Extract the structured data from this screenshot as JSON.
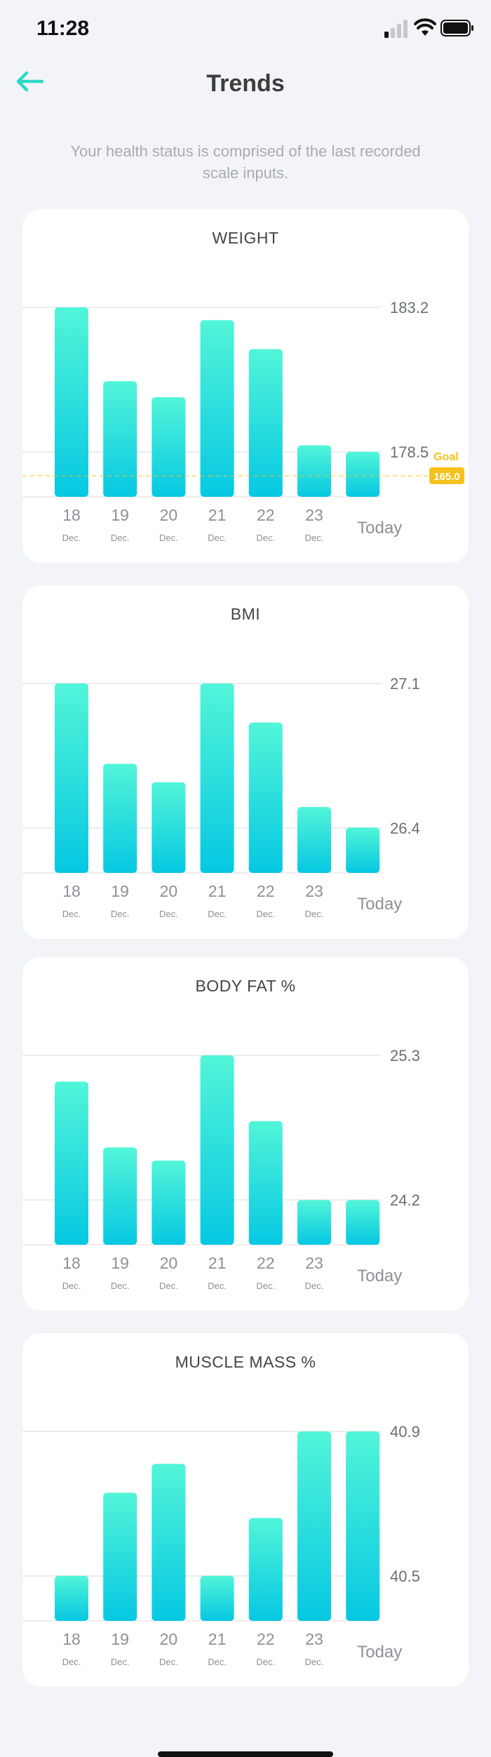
{
  "status_bar": {
    "time": "11:28"
  },
  "header": {
    "title": "Trends",
    "back_icon": "arrow-left-icon"
  },
  "subtitle": "Your health status is comprised of the last recorded scale inputs.",
  "colors": {
    "accent": "#2fd8c6",
    "bar_top": "#52f5d8",
    "bar_bottom": "#06c8e2",
    "goal": "#f5c21b"
  },
  "chart_data": [
    {
      "type": "bar",
      "title": "WEIGHT",
      "categories": [
        "18",
        "19",
        "20",
        "21",
        "22",
        "23",
        "Today"
      ],
      "category_sublabels": [
        "Dec.",
        "Dec.",
        "Dec.",
        "Dec.",
        "Dec.",
        "Dec.",
        ""
      ],
      "values": [
        183.2,
        180.9,
        180.4,
        182.8,
        181.9,
        178.9,
        178.7
      ],
      "y_tick_labels": [
        "183.2",
        "178.5"
      ],
      "ylim": [
        177.3,
        183.2
      ],
      "goal": {
        "label": "Goal",
        "value": "165.0"
      }
    },
    {
      "type": "bar",
      "title": "BMI",
      "categories": [
        "18",
        "19",
        "20",
        "21",
        "22",
        "23",
        "Today"
      ],
      "category_sublabels": [
        "Dec.",
        "Dec.",
        "Dec.",
        "Dec.",
        "Dec.",
        "Dec.",
        ""
      ],
      "values": [
        27.1,
        26.71,
        26.62,
        27.1,
        26.91,
        26.5,
        26.4
      ],
      "y_tick_labels": [
        "27.1",
        "26.4"
      ],
      "ylim": [
        26.18,
        27.1
      ]
    },
    {
      "type": "bar",
      "title": "BODY FAT %",
      "categories": [
        "18",
        "19",
        "20",
        "21",
        "22",
        "23",
        "Today"
      ],
      "category_sublabels": [
        "Dec.",
        "Dec.",
        "Dec.",
        "Dec.",
        "Dec.",
        "Dec.",
        ""
      ],
      "values": [
        25.1,
        24.6,
        24.5,
        25.3,
        24.8,
        24.2,
        24.2
      ],
      "y_tick_labels": [
        "25.3",
        "24.2"
      ],
      "ylim": [
        23.86,
        25.3
      ]
    },
    {
      "type": "bar",
      "title": "MUSCLE MASS %",
      "categories": [
        "18",
        "19",
        "20",
        "21",
        "22",
        "23",
        "Today"
      ],
      "category_sublabels": [
        "Dec.",
        "Dec.",
        "Dec.",
        "Dec.",
        "Dec.",
        "Dec.",
        ""
      ],
      "values": [
        40.5,
        40.73,
        40.81,
        40.5,
        40.66,
        40.9,
        40.9
      ],
      "y_tick_labels": [
        "40.9",
        "40.5"
      ],
      "ylim": [
        40.375,
        40.9
      ]
    }
  ]
}
